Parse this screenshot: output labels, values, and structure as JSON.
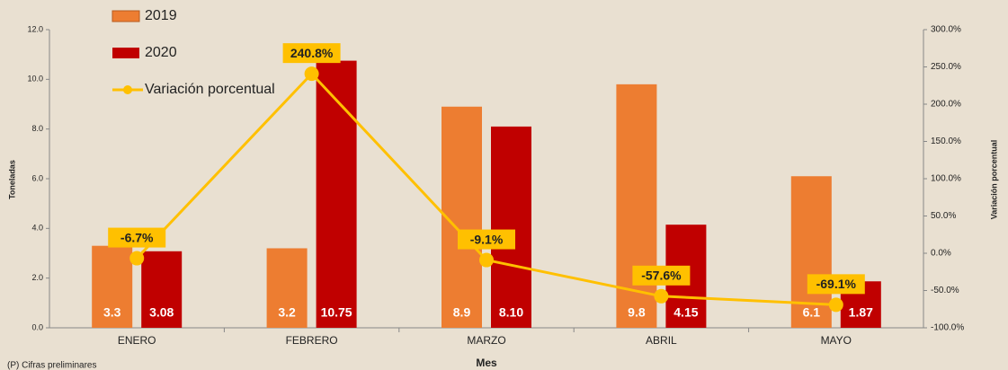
{
  "chart_data": {
    "type": "bar_line",
    "categories": [
      "ENERO",
      "FEBRERO",
      "MARZO",
      "ABRIL",
      "MAYO"
    ],
    "series": [
      {
        "name": "2019",
        "type": "bar",
        "color": "#ed7d31",
        "values": [
          3.3,
          3.2,
          8.9,
          9.8,
          6.1
        ]
      },
      {
        "name": "2020",
        "type": "bar",
        "color": "#c00000",
        "values": [
          3.08,
          10.75,
          8.1,
          4.15,
          1.87
        ],
        "value_labels": [
          "3.08",
          "10.75",
          "8.10",
          "4.15",
          "1.87"
        ]
      },
      {
        "name": "Variación porcentual",
        "type": "line",
        "axis": "y2",
        "color": "#ffc000",
        "values": [
          -6.7,
          240.8,
          -9.1,
          -57.6,
          -69.1
        ],
        "value_labels": [
          "-6.7%",
          "240.8%",
          "-9.1%",
          "-57.6%",
          "-69.1%"
        ]
      }
    ],
    "ylabel": "Toneladas",
    "y2label": "Variación porcentual",
    "xlabel": "Mes",
    "note": "(P) Cifras preliminares",
    "ylim": [
      0,
      12
    ],
    "yticks": [
      {
        "value": 0,
        "label": "0.0"
      },
      {
        "value": 2,
        "label": "2.0"
      },
      {
        "value": 4,
        "label": "4.0"
      },
      {
        "value": 6,
        "label": "6.0"
      },
      {
        "value": 8,
        "label": "8.0"
      },
      {
        "value": 10,
        "label": "10.0"
      },
      {
        "value": 12,
        "label": "12.0"
      }
    ],
    "y2lim": [
      -100,
      300
    ],
    "y2ticks": [
      {
        "value": -100,
        "label": "-100.0%"
      },
      {
        "value": -50,
        "label": "-50.0%"
      },
      {
        "value": 0,
        "label": "0.0%"
      },
      {
        "value": 50,
        "label": "50.0%"
      },
      {
        "value": 100,
        "label": "100.0%"
      },
      {
        "value": 150,
        "label": "150.0%"
      },
      {
        "value": 200,
        "label": "200.0%"
      },
      {
        "value": 250,
        "label": "250.0%"
      },
      {
        "value": 300,
        "label": "300.0%"
      }
    ],
    "legend": "top-left",
    "grid": false
  }
}
